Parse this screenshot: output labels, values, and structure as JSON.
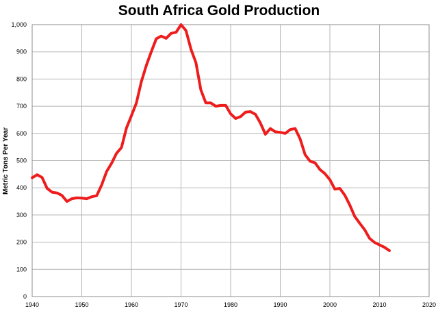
{
  "chart_data": {
    "type": "line",
    "title": "South Africa Gold Production",
    "xlabel": "",
    "ylabel": "Metric Tons Per Year",
    "xlim": [
      1940,
      2020
    ],
    "ylim": [
      0,
      1000
    ],
    "x_ticks": [
      1940,
      1950,
      1960,
      1970,
      1980,
      1990,
      2000,
      2010,
      2020
    ],
    "y_ticks": [
      0,
      100,
      200,
      300,
      400,
      500,
      600,
      700,
      800,
      900,
      1000
    ],
    "y_tick_labels": [
      "0",
      "100",
      "200",
      "300",
      "400",
      "500",
      "600",
      "700",
      "800",
      "900",
      "1,000"
    ],
    "grid": true,
    "legend": "none",
    "series": [
      {
        "color": "#ee1c1c",
        "x": [
          1940,
          1941,
          1942,
          1943,
          1944,
          1945,
          1946,
          1947,
          1948,
          1949,
          1950,
          1951,
          1952,
          1953,
          1954,
          1955,
          1956,
          1957,
          1958,
          1959,
          1960,
          1961,
          1962,
          1963,
          1964,
          1965,
          1966,
          1967,
          1968,
          1969,
          1970,
          1971,
          1972,
          1973,
          1974,
          1975,
          1976,
          1977,
          1978,
          1979,
          1980,
          1981,
          1982,
          1983,
          1984,
          1985,
          1986,
          1987,
          1988,
          1989,
          1990,
          1991,
          1992,
          1993,
          1994,
          1995,
          1996,
          1997,
          1998,
          1999,
          2000,
          2001,
          2002,
          2003,
          2004,
          2005,
          2006,
          2007,
          2008,
          2009,
          2010,
          2011,
          2012
        ],
        "values": [
          437,
          448,
          438,
          398,
          384,
          381,
          372,
          350,
          360,
          363,
          362,
          360,
          367,
          371,
          410,
          460,
          490,
          527,
          548,
          620,
          665,
          712,
          790,
          850,
          900,
          948,
          958,
          950,
          968,
          972,
          1000,
          978,
          910,
          860,
          760,
          712,
          712,
          700,
          703,
          703,
          672,
          655,
          662,
          678,
          680,
          670,
          638,
          597,
          618,
          606,
          604,
          600,
          614,
          618,
          580,
          522,
          498,
          492,
          467,
          452,
          430,
          395,
          398,
          373,
          337,
          295,
          270,
          246,
          214,
          199,
          190,
          181,
          169
        ]
      }
    ]
  }
}
